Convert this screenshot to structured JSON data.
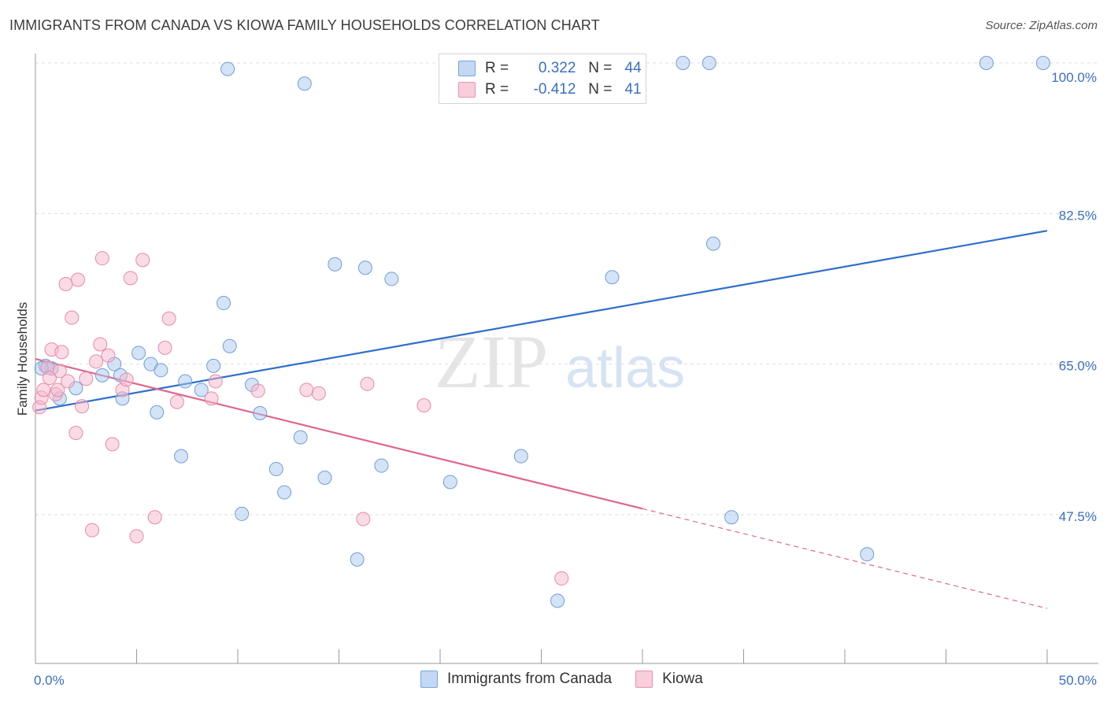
{
  "title": "IMMIGRANTS FROM CANADA VS KIOWA FAMILY HOUSEHOLDS CORRELATION CHART",
  "source": "Source: ZipAtlas.com",
  "watermark": {
    "zip": "ZIP",
    "atlas": "atlas"
  },
  "legend": {
    "rows": [
      {
        "r_label": "R =",
        "r_value": "0.322",
        "n_label": "N =",
        "n_value": "44"
      },
      {
        "r_label": "R =",
        "r_value": "-0.412",
        "n_label": "N =",
        "n_value": "41"
      }
    ]
  },
  "bottom_legend": {
    "series1": "Immigrants from Canada",
    "series2": "Kiowa"
  },
  "colors": {
    "blue_fill": "#aac8ee",
    "blue_stroke": "#6f9fd8",
    "blue_line": "#2f6fcb",
    "pink_fill": "#f5b8cb",
    "pink_stroke": "#e88aa8",
    "pink_line": "#e0668f",
    "axis_label": "#3a6fc4",
    "grid": "#dddddd"
  },
  "chart_data": {
    "type": "scatter",
    "title": "IMMIGRANTS FROM CANADA VS KIOWA FAMILY HOUSEHOLDS CORRELATION CHART",
    "xlabel": "",
    "ylabel": "Family Households",
    "xlim": [
      0,
      50
    ],
    "ylim": [
      32.5,
      102
    ],
    "x_tick_labels": [
      "0.0%",
      "50.0%"
    ],
    "y_ticks": [
      47.5,
      65.0,
      82.5,
      100.0
    ],
    "y_tick_labels": [
      "47.5%",
      "65.0%",
      "82.5%",
      "100.0%"
    ],
    "series": [
      {
        "name": "Immigrants from Canada",
        "color": "blue",
        "points": [
          [
            0.5,
            64.8
          ],
          [
            0.8,
            64.5
          ],
          [
            1.2,
            61.0
          ],
          [
            2.0,
            62.2
          ],
          [
            3.9,
            65.0
          ],
          [
            3.3,
            63.7
          ],
          [
            4.3,
            61.0
          ],
          [
            4.2,
            63.7
          ],
          [
            5.7,
            65.0
          ],
          [
            5.1,
            66.3
          ],
          [
            6.0,
            59.4
          ],
          [
            6.2,
            64.3
          ],
          [
            7.2,
            54.3
          ],
          [
            7.4,
            63.0
          ],
          [
            8.2,
            62.0
          ],
          [
            8.8,
            64.8
          ],
          [
            9.3,
            72.1
          ],
          [
            9.5,
            99.3
          ],
          [
            9.6,
            67.1
          ],
          [
            10.2,
            47.6
          ],
          [
            10.7,
            62.6
          ],
          [
            11.1,
            59.3
          ],
          [
            11.9,
            52.8
          ],
          [
            12.3,
            50.1
          ],
          [
            13.1,
            56.5
          ],
          [
            13.3,
            97.6
          ],
          [
            14.3,
            51.8
          ],
          [
            14.8,
            76.6
          ],
          [
            15.9,
            42.3
          ],
          [
            16.3,
            76.2
          ],
          [
            17.1,
            53.2
          ],
          [
            17.6,
            74.9
          ],
          [
            20.5,
            51.3
          ],
          [
            24.0,
            54.3
          ],
          [
            25.8,
            37.5
          ],
          [
            28.5,
            75.1
          ],
          [
            32.0,
            100.0
          ],
          [
            33.3,
            100.0
          ],
          [
            33.5,
            79.0
          ],
          [
            34.4,
            47.2
          ],
          [
            41.1,
            42.9
          ],
          [
            47.0,
            100.0
          ],
          [
            49.8,
            100.0
          ],
          [
            0.3,
            64.5
          ]
        ],
        "trend": {
          "x": [
            0,
            50
          ],
          "y": [
            59.6,
            80.5
          ],
          "solid_to": 50
        }
      },
      {
        "name": "Kiowa",
        "color": "pink",
        "points": [
          [
            0.2,
            60.0
          ],
          [
            0.3,
            61.1
          ],
          [
            0.6,
            64.6
          ],
          [
            0.7,
            63.4
          ],
          [
            0.8,
            66.7
          ],
          [
            1.0,
            61.5
          ],
          [
            1.1,
            62.0
          ],
          [
            1.2,
            64.2
          ],
          [
            1.3,
            66.4
          ],
          [
            1.5,
            74.3
          ],
          [
            1.6,
            63.0
          ],
          [
            1.8,
            70.4
          ],
          [
            2.0,
            57.0
          ],
          [
            2.1,
            74.8
          ],
          [
            2.3,
            60.1
          ],
          [
            2.8,
            45.7
          ],
          [
            3.0,
            65.3
          ],
          [
            3.2,
            67.3
          ],
          [
            3.3,
            77.3
          ],
          [
            3.6,
            66.0
          ],
          [
            3.8,
            55.7
          ],
          [
            4.3,
            62.0
          ],
          [
            4.5,
            63.2
          ],
          [
            4.7,
            75.0
          ],
          [
            5.0,
            45.0
          ],
          [
            5.3,
            77.1
          ],
          [
            5.9,
            47.2
          ],
          [
            6.4,
            66.9
          ],
          [
            6.6,
            70.3
          ],
          [
            7.0,
            60.6
          ],
          [
            8.7,
            61.0
          ],
          [
            8.9,
            63.0
          ],
          [
            11.0,
            61.9
          ],
          [
            13.4,
            62.0
          ],
          [
            14.0,
            61.6
          ],
          [
            16.2,
            47.0
          ],
          [
            16.4,
            62.7
          ],
          [
            19.2,
            60.2
          ],
          [
            26.0,
            40.1
          ],
          [
            0.4,
            62.0
          ],
          [
            2.5,
            63.3
          ]
        ],
        "trend": {
          "x": [
            0,
            50
          ],
          "y": [
            65.6,
            36.6
          ],
          "solid_to": 30
        }
      }
    ]
  }
}
